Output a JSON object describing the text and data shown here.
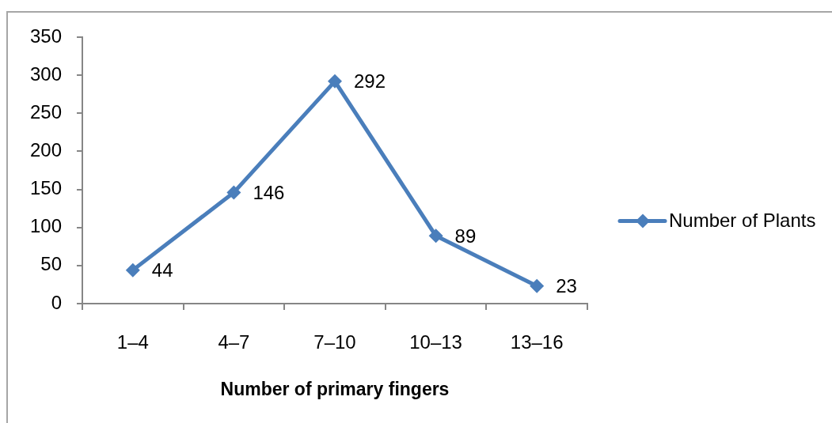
{
  "chart_data": {
    "type": "line",
    "xlabel": "Number of primary fingers",
    "categories": [
      "1–4",
      "4–7",
      "7–10",
      "10–13",
      "13–16"
    ],
    "series": [
      {
        "name": "Number of Plants",
        "color": "#4a7ebb",
        "values": [
          44,
          146,
          292,
          89,
          23
        ]
      }
    ],
    "ylim": [
      0,
      350
    ],
    "yticks": [
      0,
      50,
      100,
      150,
      200,
      250,
      300,
      350
    ],
    "data_labels": true,
    "legend": "right",
    "marker": "diamond",
    "line_style": "solid"
  }
}
